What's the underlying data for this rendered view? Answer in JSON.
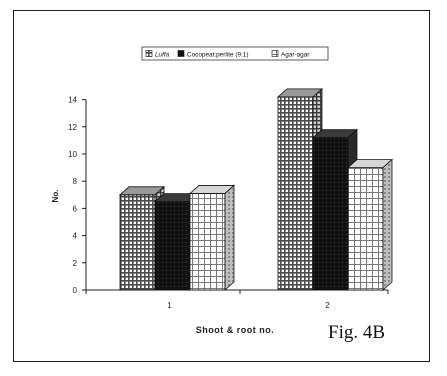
{
  "figure_label": "Fig. 4B",
  "chart_data": {
    "type": "bar",
    "categories": [
      "1",
      "2"
    ],
    "series": [
      {
        "name": "Luffa",
        "values": [
          7,
          14.2
        ]
      },
      {
        "name": "Cocopeat:perlite (9:1)",
        "values": [
          6.5,
          11.2
        ]
      },
      {
        "name": "Agar-agar",
        "values": [
          7.1,
          9
        ]
      }
    ],
    "title": "",
    "xlabel": "Shoot & root no.",
    "ylabel": "No.",
    "ylim": [
      0,
      14
    ],
    "yticks": [
      0,
      2,
      4,
      6,
      8,
      10,
      12,
      14
    ],
    "grid": false,
    "legend_position": "top-center",
    "colors": {
      "Luffa_fill": "#6e6e6e",
      "Cocopeat_fill": "#141414",
      "Agar_fill": "#f4f4f4",
      "axis": "#222222"
    }
  }
}
